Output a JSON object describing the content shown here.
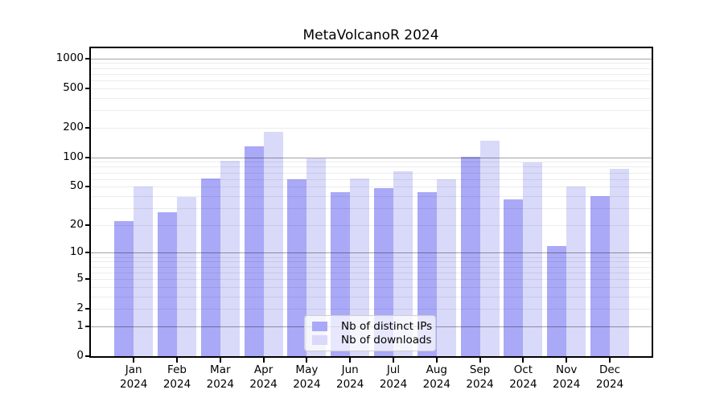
{
  "title": "MetaVolcanoR 2024",
  "chart_data": {
    "type": "bar",
    "title": "MetaVolcanoR 2024",
    "subtitle": "",
    "xlabel": "",
    "ylabel": "",
    "categories": [
      "Jan",
      "Feb",
      "Mar",
      "Apr",
      "May",
      "Jun",
      "Jul",
      "Aug",
      "Sep",
      "Oct",
      "Nov",
      "Dec"
    ],
    "year_label": "2024",
    "series": [
      {
        "name": "Nb of distinct IPs",
        "color": "#a9a9f7",
        "values": [
          22,
          27,
          61,
          130,
          60,
          44,
          48,
          44,
          102,
          37,
          12,
          40
        ]
      },
      {
        "name": "Nb of downloads",
        "color": "#d9d9f9",
        "values": [
          50,
          39,
          92,
          180,
          98,
          61,
          72,
          60,
          148,
          89,
          50,
          77
        ]
      }
    ],
    "y_axis": {
      "scale": "log10(value+1)",
      "tick_values": [
        1000,
        500,
        200,
        100,
        50,
        20,
        10,
        5,
        2,
        1,
        0
      ],
      "range": [
        0,
        1270
      ],
      "minor_grid": true
    },
    "legend": {
      "position": "inside-bottom-center",
      "entries": [
        "Nb of distinct IPs",
        "Nb of downloads"
      ]
    },
    "grid": true
  }
}
